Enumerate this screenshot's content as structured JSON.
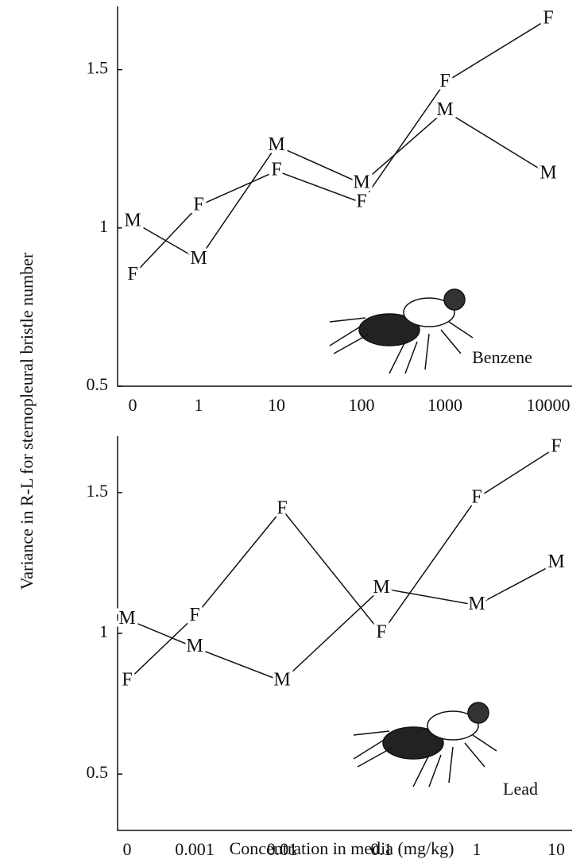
{
  "chart_data": [
    {
      "type": "line",
      "y_label": "Variance in R-L for sternopleural bristle number",
      "annotation": "Benzene",
      "categories": [
        "0",
        "1",
        "10",
        "100",
        "1000",
        "10000"
      ],
      "series": [
        {
          "name": "M",
          "color": "#111111",
          "values": [
            1.02,
            0.9,
            1.26,
            1.14,
            1.37,
            1.17
          ]
        },
        {
          "name": "F",
          "color": "#111111",
          "values": [
            0.85,
            1.07,
            1.18,
            1.08,
            1.46,
            1.66
          ]
        }
      ],
      "ylim": [
        0.5,
        1.7
      ],
      "yticks": [
        0.5,
        1.0,
        1.5
      ]
    },
    {
      "type": "line",
      "x_label": "Concentration in media (mg/kg)",
      "annotation": "Lead",
      "categories": [
        "0",
        "0.001",
        "0.01",
        "0.1",
        "1",
        "10"
      ],
      "series": [
        {
          "name": "M",
          "color": "#111111",
          "values": [
            1.05,
            0.95,
            0.83,
            1.16,
            1.1,
            1.25
          ]
        },
        {
          "name": "F",
          "color": "#111111",
          "values": [
            0.83,
            1.06,
            1.44,
            1.0,
            1.48,
            1.66
          ]
        }
      ],
      "ylim": [
        0.3,
        1.7
      ],
      "yticks": [
        0.5,
        1.0,
        1.5
      ]
    }
  ]
}
